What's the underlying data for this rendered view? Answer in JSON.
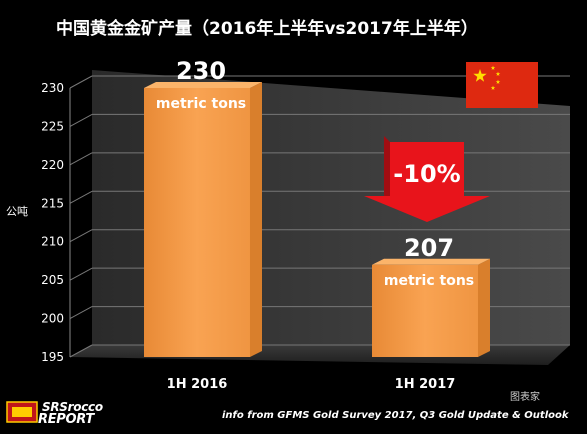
{
  "title": "中国黄金金矿产量（2016年上半年vs2017年上半年）",
  "ylabel": "公吨",
  "footnote": "info from GFMS Gold Survey 2017, Q3  Gold Update & Outlook",
  "watermark": "图表家",
  "logo": {
    "line1": "SRSrocco",
    "line2": "REPORT"
  },
  "annotation": {
    "change": "-10%"
  },
  "colors": {
    "bar": "#f59b45",
    "bar_light": "#fbb46a",
    "bar_dark": "#d97f2c",
    "arrow": "#e8141b",
    "flag_red": "#de2910",
    "flag_star": "#ffde00",
    "grid": "#777777",
    "axis_text": "#ffffff"
  },
  "chart_data": {
    "type": "bar",
    "categories": [
      "1H 2016",
      "1H 2017"
    ],
    "values": [
      230,
      207
    ],
    "value_labels": [
      "230",
      "207"
    ],
    "unit_labels": [
      "metric tons",
      "metric tons"
    ],
    "ylabel": "公吨",
    "ylim": [
      195,
      230
    ],
    "yticks": [
      195,
      200,
      205,
      210,
      215,
      220,
      225,
      230
    ],
    "grid": true
  }
}
